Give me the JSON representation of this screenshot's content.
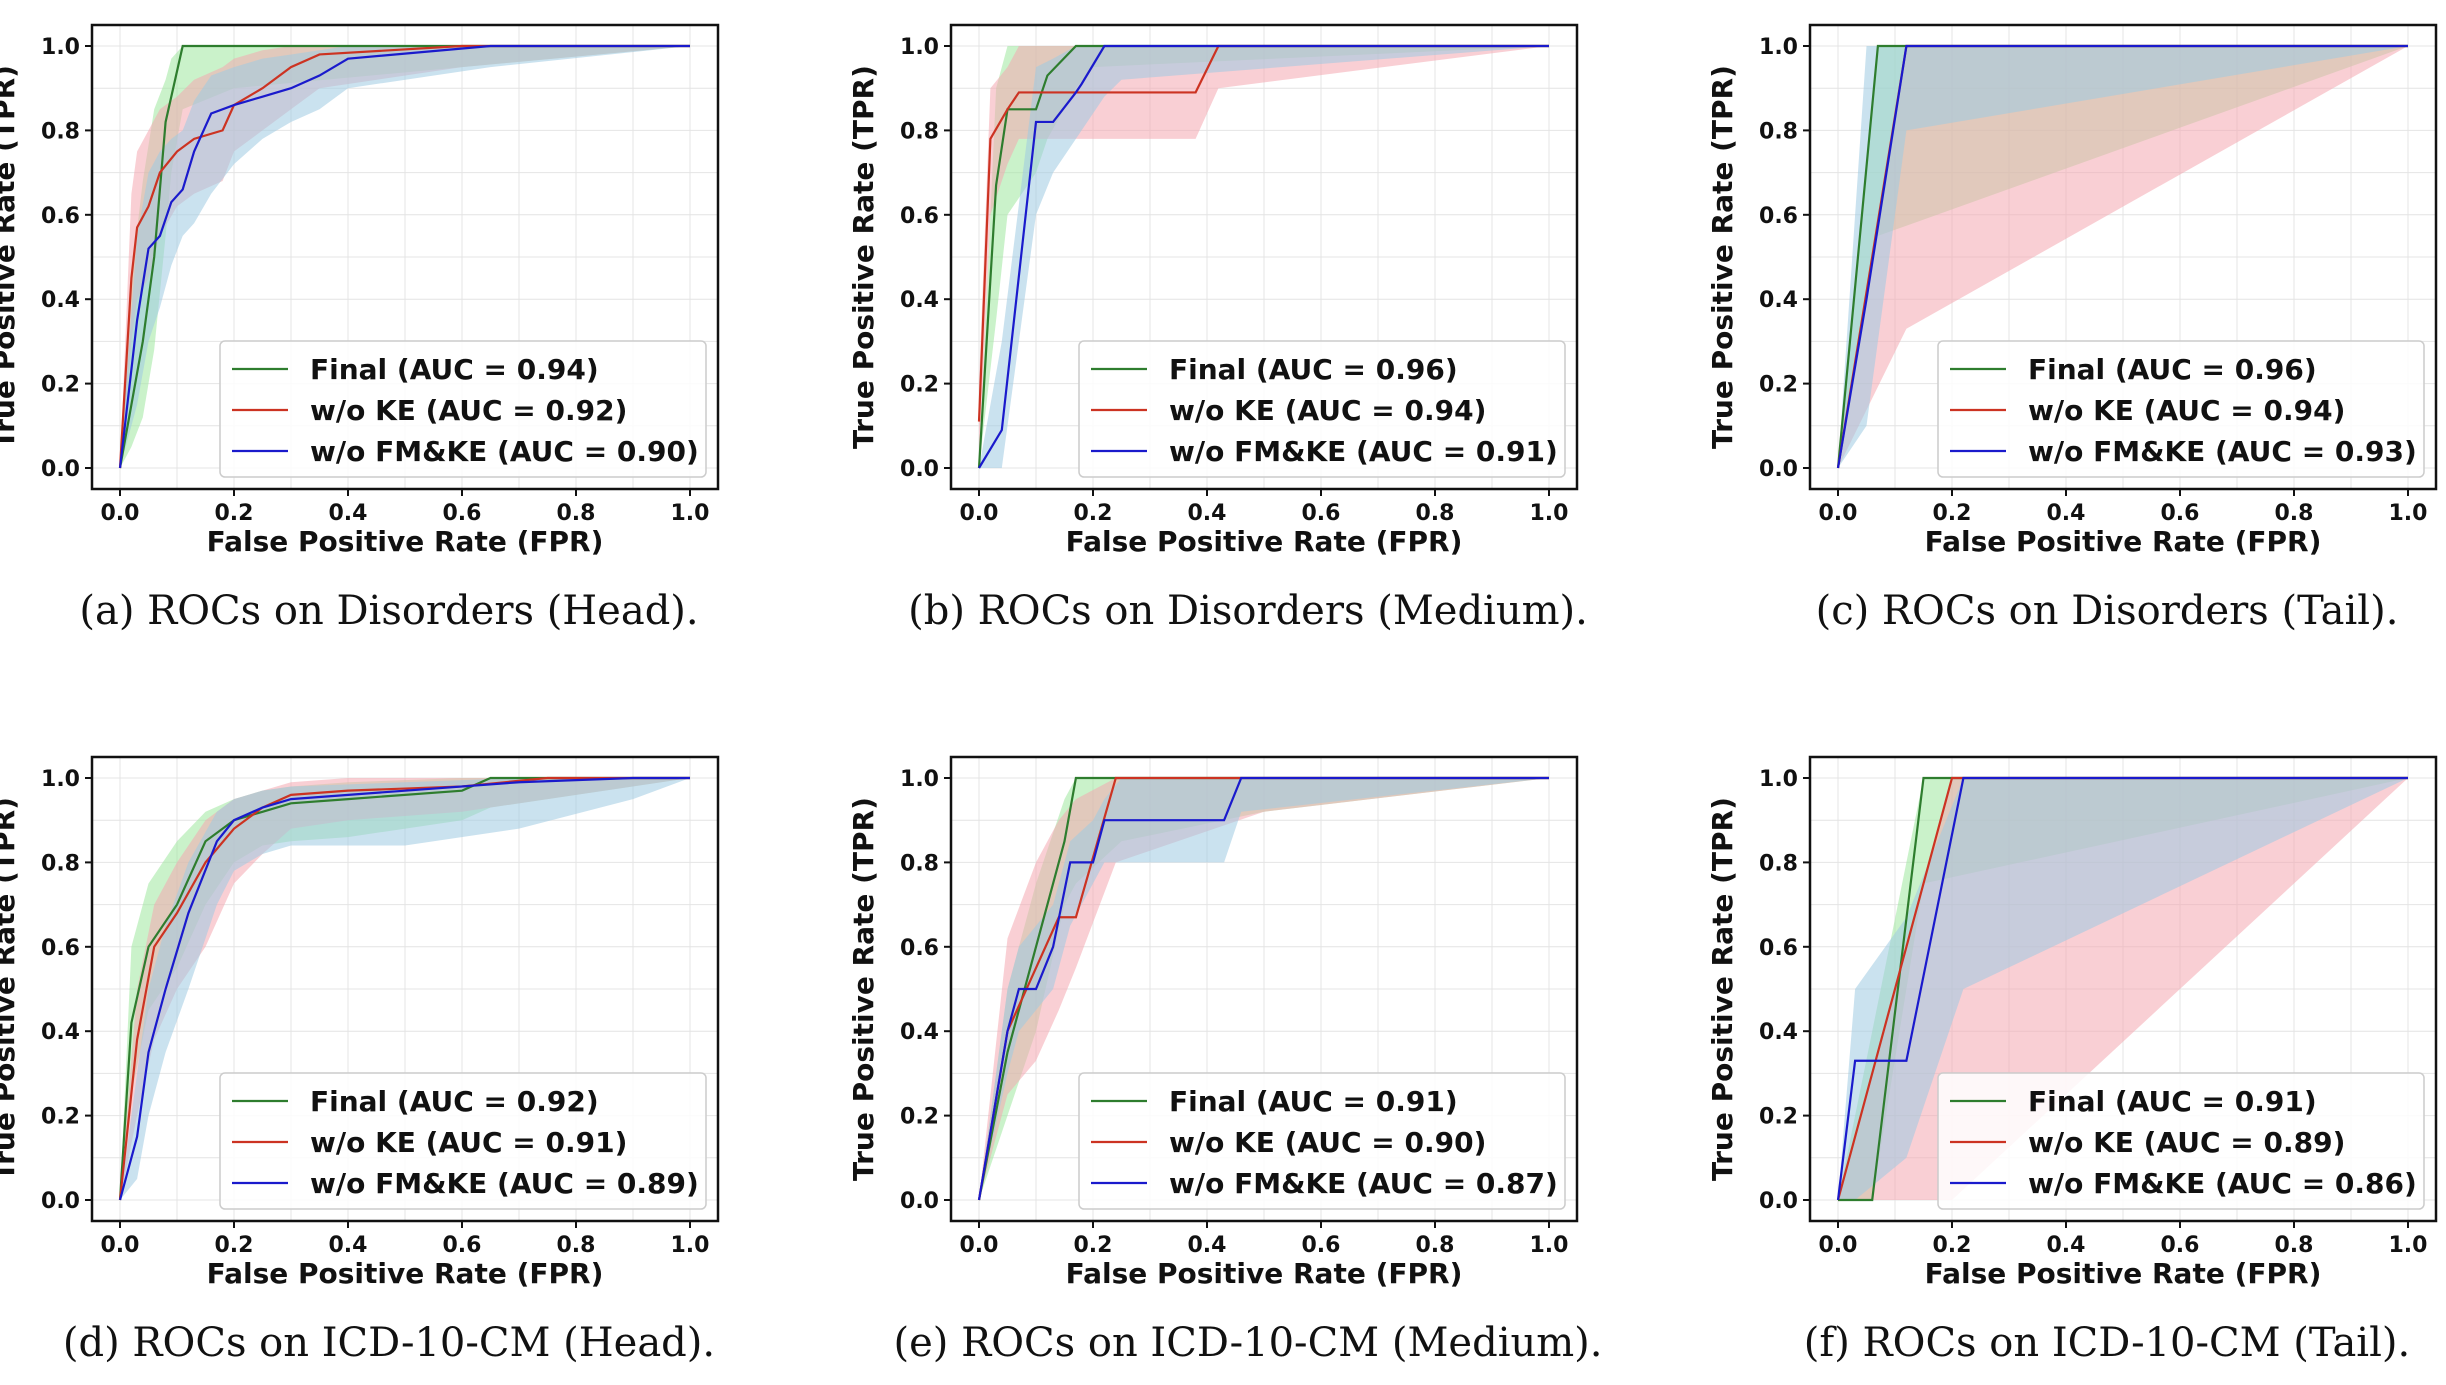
{
  "colors": {
    "final": "#2e7d2e",
    "final_band": "#9ee89e",
    "woke": "#cc3322",
    "woke_band": "#f4a7b0",
    "wofmke": "#1a1acc",
    "wofmke_band": "#9fcbe2"
  },
  "chart_data": [
    {
      "type": "line",
      "caption": "(a) ROCs on Disorders (Head).",
      "xlabel": "False Positive Rate (FPR)",
      "ylabel": "True Positive Rate (TPR)",
      "xlim": [
        0,
        1
      ],
      "ylim": [
        0,
        1
      ],
      "grid": true,
      "legend_position": "lower-right",
      "xticks": [
        "0.0",
        "0.2",
        "0.4",
        "0.6",
        "0.8",
        "1.0"
      ],
      "yticks": [
        "0.0",
        "0.2",
        "0.4",
        "0.6",
        "0.8",
        "1.0"
      ],
      "series": [
        {
          "name": "Final (AUC = 0.94)",
          "key": "final",
          "x": [
            0,
            0.02,
            0.04,
            0.06,
            0.08,
            0.09,
            0.11,
            0.2,
            1.0
          ],
          "y": [
            0,
            0.15,
            0.3,
            0.5,
            0.82,
            0.88,
            1.0,
            1.0,
            1.0
          ],
          "upper": [
            0,
            0.45,
            0.68,
            0.85,
            0.92,
            0.97,
            1.0,
            1.0,
            1.0
          ],
          "lower": [
            0,
            0.05,
            0.12,
            0.28,
            0.55,
            0.7,
            0.85,
            0.9,
            1.0
          ]
        },
        {
          "name": "w/o KE (AUC = 0.92)",
          "key": "woke",
          "x": [
            0,
            0.02,
            0.03,
            0.05,
            0.07,
            0.1,
            0.13,
            0.18,
            0.2,
            0.25,
            0.3,
            0.35,
            0.6,
            1.0
          ],
          "y": [
            0,
            0.45,
            0.57,
            0.62,
            0.7,
            0.75,
            0.78,
            0.8,
            0.86,
            0.9,
            0.95,
            0.98,
            1.0,
            1.0
          ],
          "upper": [
            0,
            0.65,
            0.75,
            0.8,
            0.85,
            0.88,
            0.92,
            0.95,
            0.97,
            0.99,
            1.0,
            1.0,
            1.0,
            1.0
          ],
          "lower": [
            0,
            0.3,
            0.4,
            0.45,
            0.55,
            0.62,
            0.65,
            0.68,
            0.75,
            0.8,
            0.85,
            0.9,
            0.95,
            1.0
          ]
        },
        {
          "name": "w/o FM&KE (AUC = 0.90)",
          "key": "wofmke",
          "x": [
            0,
            0.03,
            0.05,
            0.07,
            0.09,
            0.11,
            0.13,
            0.16,
            0.2,
            0.25,
            0.3,
            0.35,
            0.4,
            0.65,
            1.0
          ],
          "y": [
            0,
            0.35,
            0.52,
            0.55,
            0.63,
            0.66,
            0.75,
            0.84,
            0.86,
            0.88,
            0.9,
            0.93,
            0.97,
            1.0,
            1.0
          ],
          "upper": [
            0,
            0.55,
            0.7,
            0.75,
            0.78,
            0.8,
            0.87,
            0.93,
            0.95,
            0.97,
            0.98,
            0.99,
            1.0,
            1.0,
            1.0
          ],
          "lower": [
            0,
            0.15,
            0.3,
            0.38,
            0.48,
            0.55,
            0.58,
            0.65,
            0.72,
            0.78,
            0.82,
            0.85,
            0.9,
            0.95,
            1.0
          ]
        }
      ]
    },
    {
      "type": "line",
      "caption": "(b) ROCs on Disorders (Medium).",
      "xlabel": "False Positive Rate (FPR)",
      "ylabel": "True Positive Rate (TPR)",
      "xlim": [
        0,
        1
      ],
      "ylim": [
        0,
        1
      ],
      "grid": true,
      "legend_position": "lower-right",
      "xticks": [
        "0.0",
        "0.2",
        "0.4",
        "0.6",
        "0.8",
        "1.0"
      ],
      "yticks": [
        "0.0",
        "0.2",
        "0.4",
        "0.6",
        "0.8",
        "1.0"
      ],
      "series": [
        {
          "name": "Final (AUC = 0.96)",
          "key": "final",
          "x": [
            0,
            0.03,
            0.05,
            0.1,
            0.12,
            0.17,
            0.2,
            1.0
          ],
          "y": [
            0,
            0.67,
            0.85,
            0.85,
            0.93,
            1.0,
            1.0,
            1.0
          ],
          "upper": [
            0,
            0.9,
            1.0,
            1.0,
            1.0,
            1.0,
            1.0,
            1.0
          ],
          "lower": [
            0,
            0.35,
            0.6,
            0.7,
            0.78,
            0.9,
            0.95,
            1.0
          ]
        },
        {
          "name": "w/o KE (AUC = 0.94)",
          "key": "woke",
          "x": [
            0,
            0.02,
            0.05,
            0.07,
            0.38,
            0.42,
            1.0
          ],
          "y": [
            0.11,
            0.78,
            0.85,
            0.89,
            0.89,
            1.0,
            1.0
          ],
          "upper": [
            0.2,
            0.9,
            0.95,
            1.0,
            1.0,
            1.0,
            1.0
          ],
          "lower": [
            0.0,
            0.6,
            0.72,
            0.78,
            0.78,
            0.9,
            1.0
          ]
        },
        {
          "name": "w/o FM&KE (AUC = 0.91)",
          "key": "wofmke",
          "x": [
            0,
            0.04,
            0.1,
            0.13,
            0.17,
            0.18,
            0.22,
            0.25,
            1.0
          ],
          "y": [
            0,
            0.09,
            0.82,
            0.82,
            0.89,
            0.91,
            1.0,
            1.0,
            1.0
          ],
          "upper": [
            0,
            0.3,
            0.95,
            0.97,
            1.0,
            1.0,
            1.0,
            1.0,
            1.0
          ],
          "lower": [
            0,
            0.0,
            0.6,
            0.7,
            0.78,
            0.8,
            0.88,
            0.92,
            1.0
          ]
        }
      ]
    },
    {
      "type": "line",
      "caption": "(c) ROCs on Disorders (Tail).",
      "xlabel": "False Positive Rate (FPR)",
      "ylabel": "True Positive Rate (TPR)",
      "xlim": [
        0,
        1
      ],
      "ylim": [
        0,
        1
      ],
      "grid": true,
      "legend_position": "lower-right",
      "xticks": [
        "0.0",
        "0.2",
        "0.4",
        "0.6",
        "0.8",
        "1.0"
      ],
      "yticks": [
        "0.0",
        "0.2",
        "0.4",
        "0.6",
        "0.8",
        "1.0"
      ],
      "series": [
        {
          "name": "Final (AUC = 0.96)",
          "key": "final",
          "x": [
            0,
            0.07,
            1.0
          ],
          "y": [
            0,
            1.0,
            1.0
          ],
          "upper": [
            0,
            1.0,
            1.0
          ],
          "lower": [
            0,
            0.55,
            1.0
          ]
        },
        {
          "name": "w/o KE (AUC = 0.94)",
          "key": "woke",
          "x": [
            0,
            0.12,
            1.0
          ],
          "y": [
            0,
            1.0,
            1.0
          ],
          "upper": [
            0,
            1.0,
            1.0
          ],
          "lower": [
            0,
            0.33,
            1.0
          ]
        },
        {
          "name": "w/o FM&KE (AUC = 0.93)",
          "key": "wofmke",
          "x": [
            0,
            0.05,
            0.12,
            1.0
          ],
          "y": [
            0,
            0.4,
            1.0,
            1.0
          ],
          "upper": [
            0,
            1.0,
            1.0,
            1.0
          ],
          "lower": [
            0,
            0.1,
            0.8,
            1.0
          ]
        }
      ]
    },
    {
      "type": "line",
      "caption": "(d) ROCs on ICD-10-CM (Head).",
      "xlabel": "False Positive Rate (FPR)",
      "ylabel": "True Positive Rate (TPR)",
      "xlim": [
        0,
        1
      ],
      "ylim": [
        0,
        1
      ],
      "grid": true,
      "legend_position": "lower-right",
      "xticks": [
        "0.0",
        "0.2",
        "0.4",
        "0.6",
        "0.8",
        "1.0"
      ],
      "yticks": [
        "0.0",
        "0.2",
        "0.4",
        "0.6",
        "0.8",
        "1.0"
      ],
      "series": [
        {
          "name": "Final (AUC = 0.92)",
          "key": "final",
          "x": [
            0,
            0.02,
            0.05,
            0.1,
            0.15,
            0.2,
            0.25,
            0.3,
            0.4,
            0.6,
            0.65,
            1.0
          ],
          "y": [
            0,
            0.42,
            0.6,
            0.7,
            0.85,
            0.9,
            0.92,
            0.94,
            0.95,
            0.97,
            1.0,
            1.0
          ],
          "upper": [
            0,
            0.6,
            0.75,
            0.85,
            0.92,
            0.95,
            0.97,
            0.98,
            0.99,
            1.0,
            1.0,
            1.0
          ],
          "lower": [
            0,
            0.25,
            0.45,
            0.55,
            0.7,
            0.8,
            0.84,
            0.85,
            0.86,
            0.9,
            0.93,
            1.0
          ]
        },
        {
          "name": "w/o KE (AUC = 0.91)",
          "key": "woke",
          "x": [
            0,
            0.03,
            0.06,
            0.1,
            0.15,
            0.2,
            0.25,
            0.3,
            0.4,
            0.6,
            0.75,
            1.0
          ],
          "y": [
            0,
            0.38,
            0.6,
            0.68,
            0.8,
            0.88,
            0.93,
            0.96,
            0.97,
            0.98,
            1.0,
            1.0
          ],
          "upper": [
            0,
            0.5,
            0.7,
            0.8,
            0.9,
            0.95,
            0.97,
            0.99,
            1.0,
            1.0,
            1.0,
            1.0
          ],
          "lower": [
            0,
            0.2,
            0.38,
            0.5,
            0.6,
            0.75,
            0.82,
            0.88,
            0.9,
            0.92,
            0.95,
            1.0
          ]
        },
        {
          "name": "w/o FM&KE (AUC = 0.89)",
          "key": "wofmke",
          "x": [
            0,
            0.03,
            0.05,
            0.08,
            0.12,
            0.17,
            0.2,
            0.25,
            0.3,
            0.5,
            0.7,
            0.9,
            1.0
          ],
          "y": [
            0,
            0.15,
            0.35,
            0.5,
            0.68,
            0.85,
            0.9,
            0.93,
            0.95,
            0.97,
            0.99,
            1.0,
            1.0
          ],
          "upper": [
            0,
            0.3,
            0.5,
            0.65,
            0.8,
            0.92,
            0.95,
            0.97,
            0.98,
            0.99,
            1.0,
            1.0,
            1.0
          ],
          "lower": [
            0,
            0.05,
            0.2,
            0.35,
            0.5,
            0.7,
            0.78,
            0.82,
            0.84,
            0.84,
            0.88,
            0.95,
            1.0
          ]
        }
      ]
    },
    {
      "type": "line",
      "caption": "(e) ROCs on ICD-10-CM (Medium).",
      "xlabel": "False Positive Rate (FPR)",
      "ylabel": "True Positive Rate (TPR)",
      "xlim": [
        0,
        1
      ],
      "ylim": [
        0,
        1
      ],
      "grid": true,
      "legend_position": "lower-right",
      "xticks": [
        "0.0",
        "0.2",
        "0.4",
        "0.6",
        "0.8",
        "1.0"
      ],
      "yticks": [
        "0.0",
        "0.2",
        "0.4",
        "0.6",
        "0.8",
        "1.0"
      ],
      "series": [
        {
          "name": "Final (AUC = 0.91)",
          "key": "final",
          "x": [
            0,
            0.05,
            0.1,
            0.15,
            0.17,
            0.25,
            0.5,
            1.0
          ],
          "y": [
            0,
            0.35,
            0.6,
            0.85,
            1.0,
            1.0,
            1.0,
            1.0
          ],
          "upper": [
            0,
            0.5,
            0.75,
            0.95,
            1.0,
            1.0,
            1.0,
            1.0
          ],
          "lower": [
            0,
            0.2,
            0.4,
            0.7,
            0.75,
            0.85,
            0.92,
            1.0
          ]
        },
        {
          "name": "w/o KE (AUC = 0.90)",
          "key": "woke",
          "x": [
            0,
            0.05,
            0.1,
            0.14,
            0.17,
            0.24,
            0.5,
            1.0
          ],
          "y": [
            0,
            0.4,
            0.55,
            0.67,
            0.67,
            1.0,
            1.0,
            1.0
          ],
          "upper": [
            0,
            0.62,
            0.8,
            0.9,
            0.95,
            1.0,
            1.0,
            1.0
          ],
          "lower": [
            0,
            0.25,
            0.33,
            0.45,
            0.55,
            0.8,
            0.92,
            1.0
          ]
        },
        {
          "name": "w/o FM&KE (AUC = 0.87)",
          "key": "wofmke",
          "x": [
            0,
            0.05,
            0.07,
            0.1,
            0.13,
            0.16,
            0.2,
            0.22,
            0.25,
            0.43,
            0.46,
            1.0
          ],
          "y": [
            0,
            0.4,
            0.5,
            0.5,
            0.6,
            0.8,
            0.8,
            0.9,
            0.9,
            0.9,
            1.0,
            1.0
          ],
          "upper": [
            0,
            0.5,
            0.6,
            0.65,
            0.7,
            0.85,
            0.9,
            0.95,
            1.0,
            1.0,
            1.0,
            1.0
          ],
          "lower": [
            0,
            0.3,
            0.4,
            0.45,
            0.5,
            0.65,
            0.75,
            0.8,
            0.8,
            0.8,
            0.92,
            1.0
          ]
        }
      ]
    },
    {
      "type": "line",
      "caption": "(f) ROCs on ICD-10-CM (Tail).",
      "xlabel": "False Positive Rate (FPR)",
      "ylabel": "True Positive Rate (TPR)",
      "xlim": [
        0,
        1
      ],
      "ylim": [
        0,
        1
      ],
      "grid": true,
      "legend_position": "lower-right",
      "xticks": [
        "0.0",
        "0.2",
        "0.4",
        "0.6",
        "0.8",
        "1.0"
      ],
      "yticks": [
        "0.0",
        "0.2",
        "0.4",
        "0.6",
        "0.8",
        "1.0"
      ],
      "series": [
        {
          "name": "Final (AUC = 0.91)",
          "key": "final",
          "x": [
            0,
            0.06,
            0.15,
            1.0
          ],
          "y": [
            0,
            0.0,
            1.0,
            1.0
          ],
          "upper": [
            0,
            0.4,
            1.0,
            1.0
          ],
          "lower": [
            0,
            0.0,
            0.75,
            1.0
          ]
        },
        {
          "name": "w/o KE (AUC = 0.89)",
          "key": "woke",
          "x": [
            0,
            0.2,
            1.0
          ],
          "y": [
            0,
            1.0,
            1.0
          ],
          "upper": [
            0,
            1.0,
            1.0
          ],
          "lower": [
            0,
            0.0,
            1.0
          ]
        },
        {
          "name": "w/o FM&KE (AUC = 0.86)",
          "key": "wofmke",
          "x": [
            0,
            0.03,
            0.12,
            0.22,
            1.0
          ],
          "y": [
            0,
            0.33,
            0.33,
            1.0,
            1.0
          ],
          "upper": [
            0,
            0.5,
            0.67,
            1.0,
            1.0
          ],
          "lower": [
            0,
            0.0,
            0.1,
            0.5,
            1.0
          ]
        }
      ]
    }
  ]
}
